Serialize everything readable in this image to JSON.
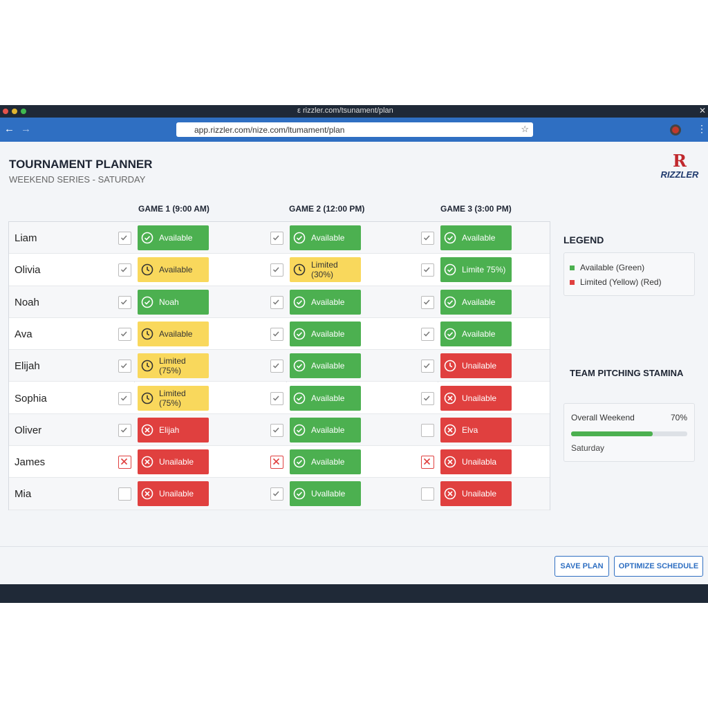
{
  "browser": {
    "tab_url": "ε rizzler.com/tsunament/plan",
    "address": "app.rizzler.com/nize.com/ltumament/plan"
  },
  "header": {
    "title": "TOURNAMENT PLANNER",
    "subtitle": "WEEKEND SERIES - SATURDAY",
    "logo_letter": "R",
    "logo_name": "RIZZLER"
  },
  "table": {
    "columns": [
      "GAME 1 (9:00 AM)",
      "GAME 2 (12:00 PM)",
      "GAME 3 (3:00 PM)"
    ],
    "rows": [
      {
        "name": "Liam",
        "games": [
          {
            "checkbox": "checked",
            "status": "green",
            "icon": "check",
            "label": "Available"
          },
          {
            "checkbox": "checked",
            "status": "green",
            "icon": "check",
            "label": "Available"
          },
          {
            "checkbox": "checked",
            "status": "green",
            "icon": "check",
            "label": "Available"
          }
        ]
      },
      {
        "name": "Olivia",
        "games": [
          {
            "checkbox": "checked",
            "status": "yellow",
            "icon": "clock",
            "label": "Available"
          },
          {
            "checkbox": "checked",
            "status": "yellow",
            "icon": "clock",
            "label": "Limited (30%)"
          },
          {
            "checkbox": "checked",
            "status": "green",
            "icon": "check",
            "label": "Limite 75%)"
          }
        ]
      },
      {
        "name": "Noah",
        "games": [
          {
            "checkbox": "checked",
            "status": "green",
            "icon": "check",
            "label": "Noah"
          },
          {
            "checkbox": "checked",
            "status": "green",
            "icon": "check",
            "label": "Available"
          },
          {
            "checkbox": "checked",
            "status": "green",
            "icon": "check",
            "label": "Available"
          }
        ]
      },
      {
        "name": "Ava",
        "games": [
          {
            "checkbox": "checked",
            "status": "yellow",
            "icon": "clock",
            "label": "Available"
          },
          {
            "checkbox": "checked",
            "status": "green",
            "icon": "check",
            "label": "Available"
          },
          {
            "checkbox": "checked",
            "status": "green",
            "icon": "check",
            "label": "Available"
          }
        ]
      },
      {
        "name": "Elijah",
        "games": [
          {
            "checkbox": "checked",
            "status": "yellow",
            "icon": "clock",
            "label": "Limited (75%)"
          },
          {
            "checkbox": "checked",
            "status": "green",
            "icon": "check",
            "label": "Available"
          },
          {
            "checkbox": "checked",
            "status": "red",
            "icon": "clock",
            "label": "Unailable"
          }
        ]
      },
      {
        "name": "Sophia",
        "games": [
          {
            "checkbox": "checked",
            "status": "yellow",
            "icon": "clock",
            "label": "Limited (75%)"
          },
          {
            "checkbox": "checked",
            "status": "green",
            "icon": "check",
            "label": "Available"
          },
          {
            "checkbox": "checked",
            "status": "red",
            "icon": "x",
            "label": "Unailable"
          }
        ]
      },
      {
        "name": "Oliver",
        "games": [
          {
            "checkbox": "checked",
            "status": "red",
            "icon": "x",
            "label": "Elijah"
          },
          {
            "checkbox": "checked",
            "status": "green",
            "icon": "check",
            "label": "Available"
          },
          {
            "checkbox": "empty",
            "status": "red",
            "icon": "x",
            "label": "Elva"
          }
        ]
      },
      {
        "name": "James",
        "games": [
          {
            "checkbox": "crossed",
            "status": "red",
            "icon": "x",
            "label": "Unailable"
          },
          {
            "checkbox": "crossed",
            "status": "green",
            "icon": "check",
            "label": "Available"
          },
          {
            "checkbox": "crossed",
            "status": "red",
            "icon": "x",
            "label": "Unailabla"
          }
        ]
      },
      {
        "name": "Mia",
        "games": [
          {
            "checkbox": "empty",
            "status": "red",
            "icon": "x",
            "label": "Unailable"
          },
          {
            "checkbox": "checked",
            "status": "green",
            "icon": "check",
            "label": "Uvallable"
          },
          {
            "checkbox": "empty",
            "status": "red",
            "icon": "x",
            "label": "Unailable"
          }
        ]
      }
    ]
  },
  "legend": {
    "title": "LEGEND",
    "items": [
      {
        "label": "Available (Green)",
        "color": "green"
      },
      {
        "label": "Limited (Yellow) (Red)",
        "color": "red"
      }
    ]
  },
  "stamina": {
    "title": "TEAM PITCHING STAMINA",
    "label": "Overall Weekend",
    "percent": {
      "value": 70,
      "label": "70%"
    },
    "day": "Saturday"
  },
  "buttons": [
    "SAVE PLAN",
    "OPTIMIZE SCHEDULE"
  ]
}
